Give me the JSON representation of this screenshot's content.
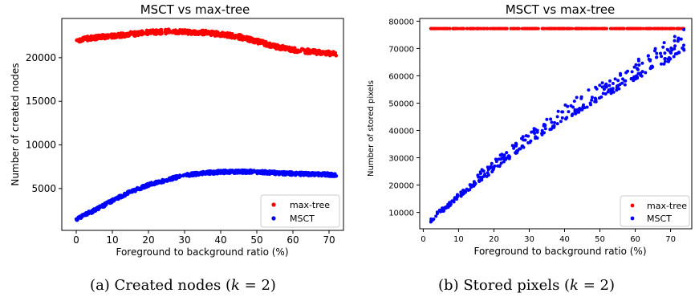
{
  "chart_data": [
    {
      "type": "scatter",
      "title": "MSCT vs max-tree",
      "xlabel": "Foreground to background ratio (%)",
      "ylabel": "Number of created nodes",
      "xlim": [
        -4,
        74
      ],
      "ylim": [
        200,
        24500
      ],
      "xticks": [
        0,
        10,
        20,
        30,
        40,
        50,
        60,
        70
      ],
      "yticks": [
        5000,
        10000,
        15000,
        20000
      ],
      "caption": "(a) Created nodes (k = 2)",
      "legend_position": "lower-right",
      "series": [
        {
          "name": "max-tree",
          "color": "#ff0000",
          "x": [
            0,
            5,
            10,
            15,
            20,
            25,
            30,
            35,
            40,
            45,
            50,
            55,
            60,
            65,
            70,
            72
          ],
          "y": [
            22000,
            22300,
            22500,
            22700,
            22900,
            23000,
            22950,
            22900,
            22700,
            22400,
            21900,
            21300,
            20900,
            20700,
            20500,
            20400
          ]
        },
        {
          "name": "MSCT",
          "color": "#0000ff",
          "x": [
            0,
            5,
            10,
            15,
            20,
            25,
            30,
            35,
            40,
            45,
            50,
            55,
            60,
            65,
            70,
            72
          ],
          "y": [
            1500,
            2500,
            3600,
            4600,
            5400,
            6000,
            6500,
            6750,
            6900,
            6950,
            6900,
            6800,
            6700,
            6650,
            6600,
            6550
          ]
        }
      ]
    },
    {
      "type": "scatter",
      "title": "MSCT vs max-tree",
      "xlabel": "Foreground to background ratio (%)",
      "ylabel": "Number of stored pixels",
      "xlim": [
        -1,
        76
      ],
      "ylim": [
        4000,
        81000
      ],
      "xticks": [
        0,
        10,
        20,
        30,
        40,
        50,
        60,
        70
      ],
      "yticks": [
        10000,
        20000,
        30000,
        40000,
        50000,
        60000,
        70000,
        80000
      ],
      "caption": "(b) Stored pixels (k = 2)",
      "legend_position": "lower-right",
      "series": [
        {
          "name": "max-tree",
          "color": "#ff0000",
          "x": [
            2,
            10,
            20,
            30,
            40,
            50,
            60,
            70,
            74
          ],
          "y": [
            77300,
            77300,
            77300,
            77300,
            77300,
            77300,
            77300,
            77300,
            77300
          ]
        },
        {
          "name": "MSCT",
          "color": "#0000ff",
          "x": [
            2,
            10,
            20,
            30,
            40,
            50,
            60,
            70,
            74
          ],
          "y": [
            7000,
            16000,
            26000,
            36000,
            44500,
            52000,
            59500,
            66500,
            70000
          ]
        }
      ]
    }
  ]
}
